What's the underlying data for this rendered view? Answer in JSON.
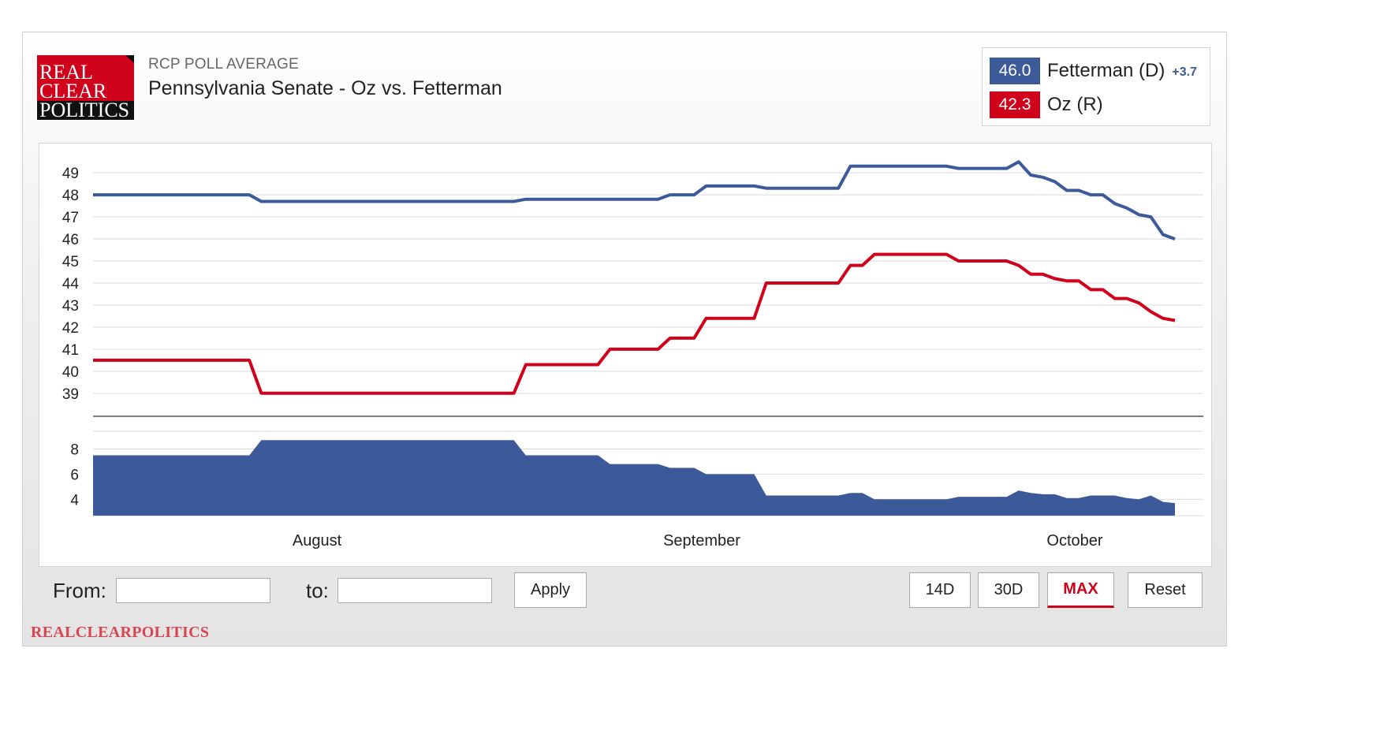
{
  "header": {
    "logo_lines": [
      "REAL",
      "CLEAR",
      "POLITICS"
    ],
    "subtitle": "RCP POLL AVERAGE",
    "title": "Pennsylvania Senate - Oz vs. Fetterman"
  },
  "legend": [
    {
      "value": "46.0",
      "name": "Fetterman (D)",
      "spread": "+3.7",
      "color": "#3c5a9a"
    },
    {
      "value": "42.3",
      "name": "Oz (R)",
      "spread": "",
      "color": "#d0021b"
    }
  ],
  "controls": {
    "from_label": "From:",
    "to_label": "to:",
    "apply_label": "Apply",
    "range_buttons": [
      "14D",
      "30D",
      "MAX"
    ],
    "active_range": "MAX",
    "reset_label": "Reset"
  },
  "footer_logo": "REALCLEARPOLITICS",
  "chart_data": [
    {
      "type": "line",
      "title": "",
      "xlabel": "",
      "ylabel": "",
      "x_ticks": [
        "August",
        "September",
        "October"
      ],
      "y_ticks": [
        39,
        40,
        41,
        42,
        43,
        44,
        45,
        46,
        47,
        48,
        49
      ],
      "ylim": [
        38.1,
        49.9
      ],
      "grid": true,
      "series": [
        {
          "name": "Fetterman (D)",
          "color": "#3c5a9a",
          "values": [
            48.0,
            48.0,
            48.0,
            48.0,
            48.0,
            48.0,
            48.0,
            48.0,
            48.0,
            48.0,
            48.0,
            48.0,
            48.0,
            48.0,
            47.7,
            47.7,
            47.7,
            47.7,
            47.7,
            47.7,
            47.7,
            47.7,
            47.7,
            47.7,
            47.7,
            47.7,
            47.7,
            47.7,
            47.7,
            47.7,
            47.7,
            47.7,
            47.7,
            47.7,
            47.7,
            47.7,
            47.8,
            47.8,
            47.8,
            47.8,
            47.8,
            47.8,
            47.8,
            47.8,
            47.8,
            47.8,
            47.8,
            47.8,
            48.0,
            48.0,
            48.0,
            48.4,
            48.4,
            48.4,
            48.4,
            48.4,
            48.3,
            48.3,
            48.3,
            48.3,
            48.3,
            48.3,
            48.3,
            49.3,
            49.3,
            49.3,
            49.3,
            49.3,
            49.3,
            49.3,
            49.3,
            49.3,
            49.2,
            49.2,
            49.2,
            49.2,
            49.2,
            49.5,
            48.9,
            48.8,
            48.6,
            48.2,
            48.2,
            48.0,
            48.0,
            47.6,
            47.4,
            47.1,
            47.0,
            46.2,
            46.0
          ]
        },
        {
          "name": "Oz (R)",
          "color": "#d0021b",
          "values": [
            40.5,
            40.5,
            40.5,
            40.5,
            40.5,
            40.5,
            40.5,
            40.5,
            40.5,
            40.5,
            40.5,
            40.5,
            40.5,
            40.5,
            39.0,
            39.0,
            39.0,
            39.0,
            39.0,
            39.0,
            39.0,
            39.0,
            39.0,
            39.0,
            39.0,
            39.0,
            39.0,
            39.0,
            39.0,
            39.0,
            39.0,
            39.0,
            39.0,
            39.0,
            39.0,
            39.0,
            40.3,
            40.3,
            40.3,
            40.3,
            40.3,
            40.3,
            40.3,
            41.0,
            41.0,
            41.0,
            41.0,
            41.0,
            41.5,
            41.5,
            41.5,
            42.4,
            42.4,
            42.4,
            42.4,
            42.4,
            44.0,
            44.0,
            44.0,
            44.0,
            44.0,
            44.0,
            44.0,
            44.8,
            44.8,
            45.3,
            45.3,
            45.3,
            45.3,
            45.3,
            45.3,
            45.3,
            45.0,
            45.0,
            45.0,
            45.0,
            45.0,
            44.8,
            44.4,
            44.4,
            44.2,
            44.1,
            44.1,
            43.7,
            43.7,
            43.3,
            43.3,
            43.1,
            42.7,
            42.4,
            42.3
          ]
        }
      ]
    },
    {
      "type": "area",
      "title": "",
      "xlabel": "",
      "ylabel": "",
      "y_ticks": [
        4,
        6,
        8
      ],
      "ylim": [
        2.7,
        9.6
      ],
      "grid": true,
      "series": [
        {
          "name": "Spread",
          "color": "#3c5a9a",
          "values": [
            7.5,
            7.5,
            7.5,
            7.5,
            7.5,
            7.5,
            7.5,
            7.5,
            7.5,
            7.5,
            7.5,
            7.5,
            7.5,
            7.5,
            8.7,
            8.7,
            8.7,
            8.7,
            8.7,
            8.7,
            8.7,
            8.7,
            8.7,
            8.7,
            8.7,
            8.7,
            8.7,
            8.7,
            8.7,
            8.7,
            8.7,
            8.7,
            8.7,
            8.7,
            8.7,
            8.7,
            7.5,
            7.5,
            7.5,
            7.5,
            7.5,
            7.5,
            7.5,
            6.8,
            6.8,
            6.8,
            6.8,
            6.8,
            6.5,
            6.5,
            6.5,
            6.0,
            6.0,
            6.0,
            6.0,
            6.0,
            4.3,
            4.3,
            4.3,
            4.3,
            4.3,
            4.3,
            4.3,
            4.5,
            4.5,
            4.0,
            4.0,
            4.0,
            4.0,
            4.0,
            4.0,
            4.0,
            4.2,
            4.2,
            4.2,
            4.2,
            4.2,
            4.7,
            4.5,
            4.4,
            4.4,
            4.1,
            4.1,
            4.3,
            4.3,
            4.3,
            4.1,
            4.0,
            4.3,
            3.8,
            3.7
          ]
        }
      ]
    }
  ]
}
